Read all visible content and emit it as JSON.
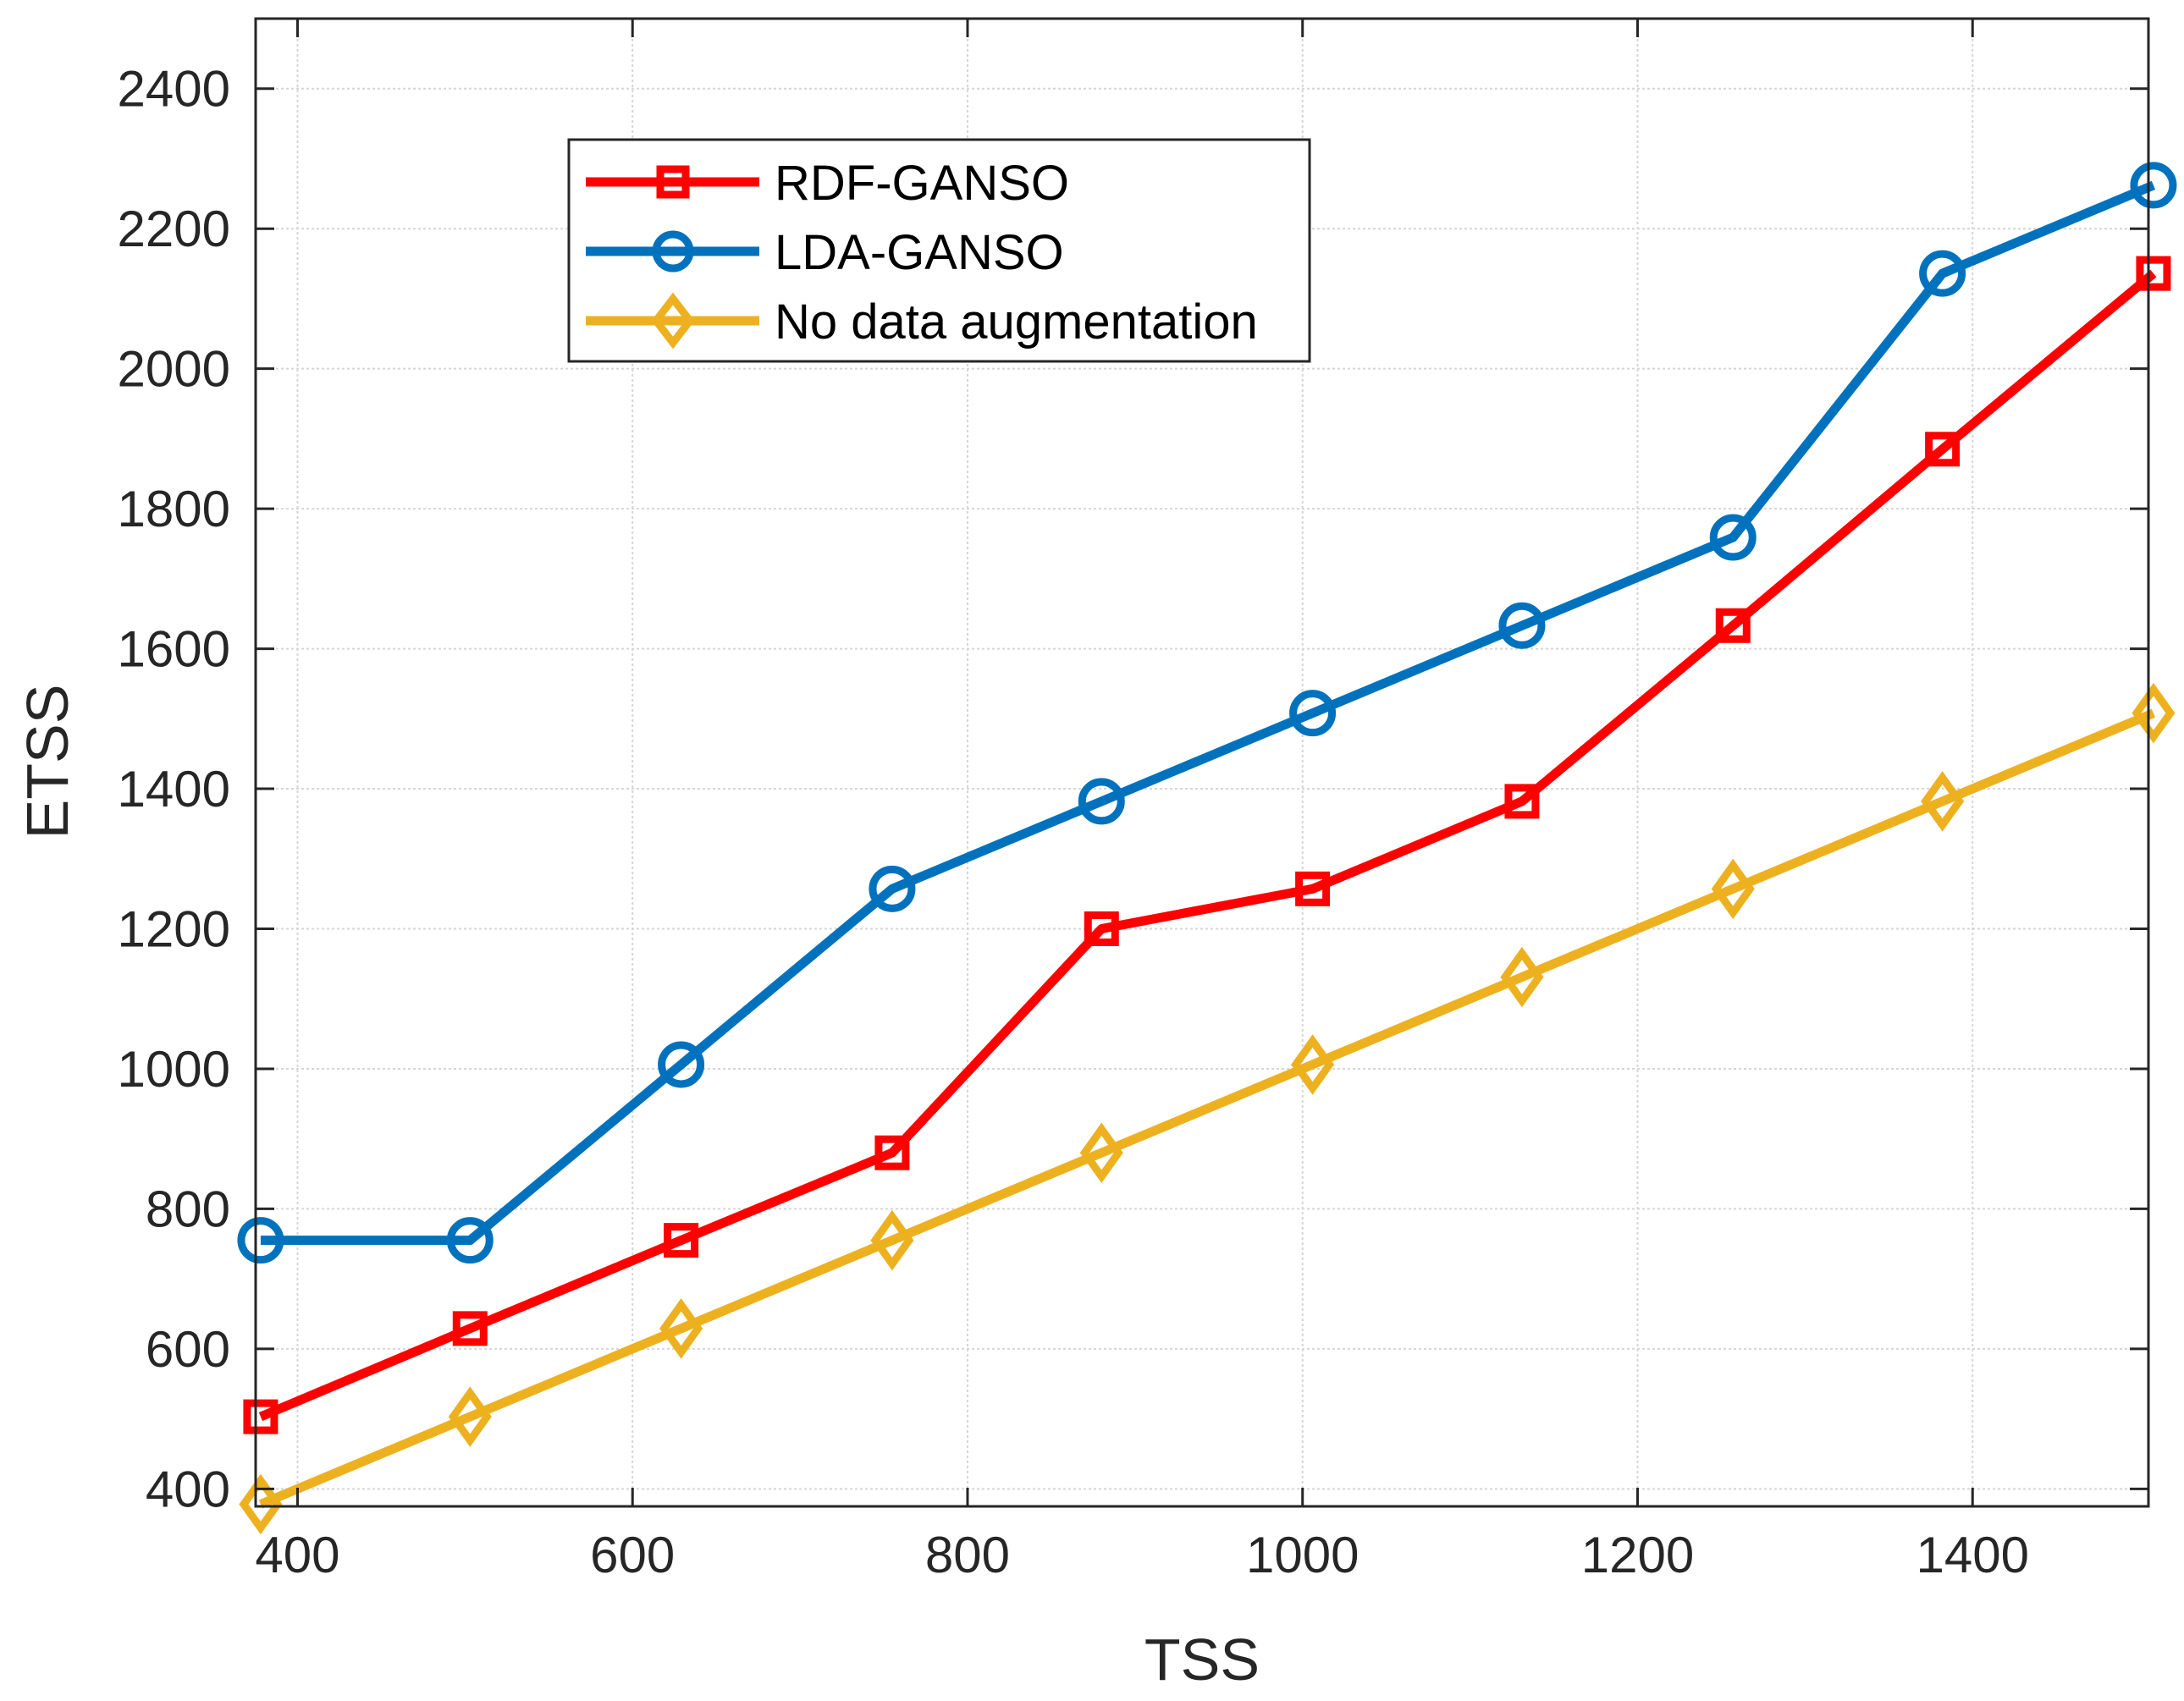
{
  "chart_data": {
    "type": "line",
    "title": "",
    "xlabel": "TSS",
    "ylabel": "ETSS",
    "xlim": [
      375,
      1505
    ],
    "ylim": [
      375,
      2500
    ],
    "xticks": [
      400,
      600,
      800,
      1000,
      1200,
      1400
    ],
    "yticks": [
      400,
      600,
      800,
      1000,
      1200,
      1400,
      1600,
      1800,
      2000,
      2200,
      2400
    ],
    "grid": true,
    "legend_position": "top-left",
    "x": [
      378,
      503,
      629,
      755,
      880,
      1006,
      1131,
      1257,
      1382,
      1508
    ],
    "series": [
      {
        "name": "RDF-GANSO",
        "color": "#ff0000",
        "marker": "square",
        "values": [
          503,
          629,
          755,
          880,
          1200,
          1257,
          1382,
          1633,
          1885,
          2136
        ]
      },
      {
        "name": "LDA-GANSO",
        "color": "#0072bd",
        "marker": "circle",
        "values": [
          755,
          755,
          1006,
          1257,
          1382,
          1508,
          1633,
          1759,
          2136,
          2262
        ]
      },
      {
        "name": "No data augmentation",
        "color": "#edb120",
        "marker": "diamond",
        "values": [
          378,
          503,
          629,
          755,
          880,
          1006,
          1131,
          1257,
          1382,
          1508
        ]
      }
    ]
  }
}
